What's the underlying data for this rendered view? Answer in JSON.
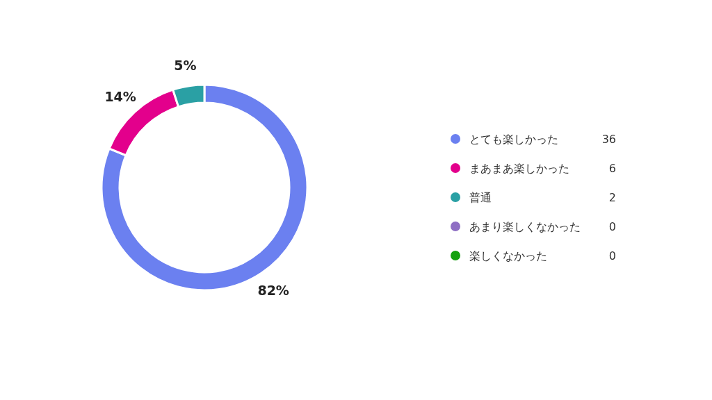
{
  "chart_data": {
    "type": "donut",
    "categories": [
      "とても楽しかった",
      "まあまあ楽しかった",
      "普通",
      "あまり楽しくなかった",
      "楽しくなかった"
    ],
    "values": [
      82,
      14,
      5,
      0,
      0
    ],
    "annotations": [
      "36",
      "6",
      "2",
      "0",
      "0"
    ],
    "colors": [
      "#6b80f0",
      "#e3008c",
      "#2aa0a4",
      "#8f6fc4",
      "#13a10e"
    ],
    "value_labels": [
      "82%",
      "14%",
      "5%",
      null,
      null
    ],
    "legend": "right"
  }
}
